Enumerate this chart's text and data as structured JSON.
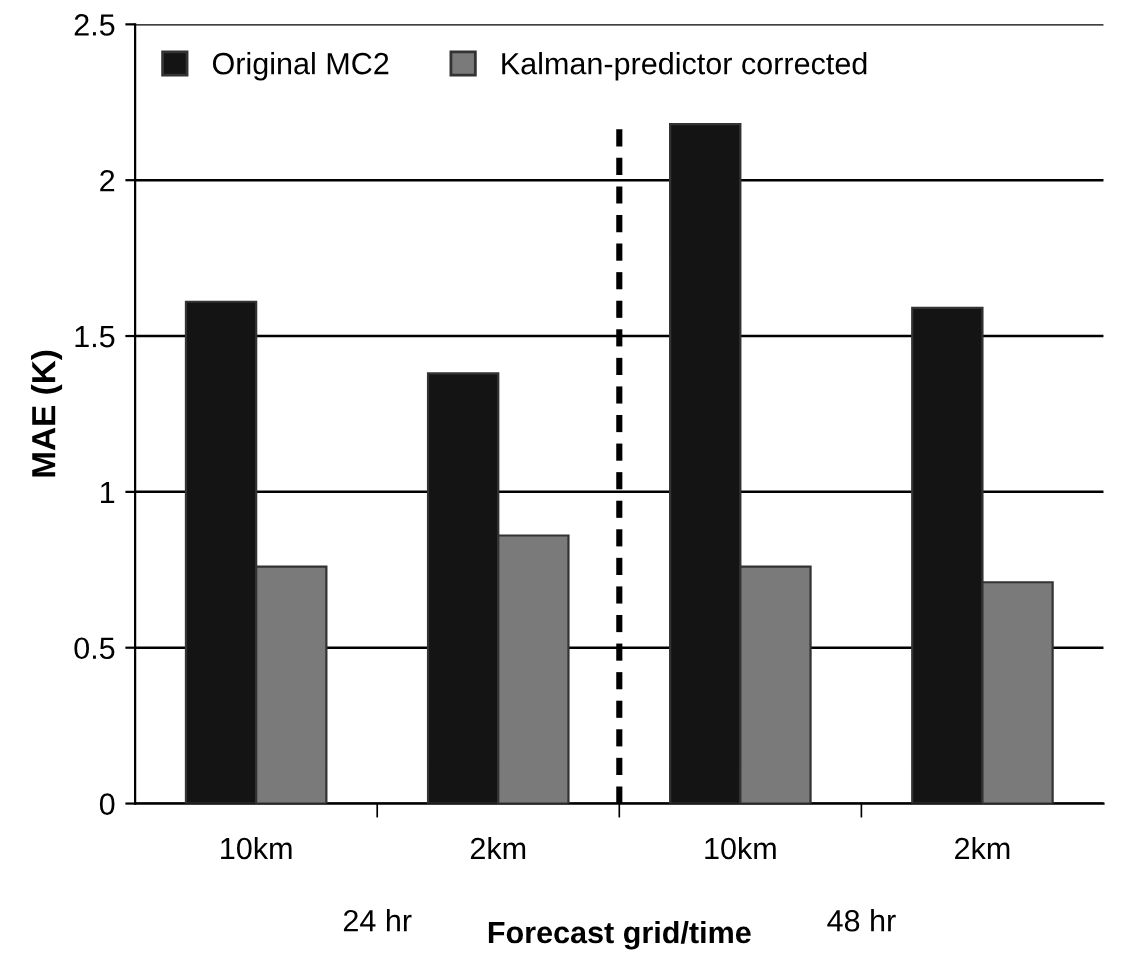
{
  "chart_data": {
    "type": "bar",
    "xlabel": "Forecast grid/time",
    "ylabel": "MAE (K)",
    "categories": [
      "10km",
      "2km",
      "10km",
      "2km"
    ],
    "series": [
      {
        "name": "Original MC2",
        "color": "#141414",
        "values": [
          1.61,
          1.38,
          2.18,
          1.59
        ]
      },
      {
        "name": "Kalman-predictor corrected",
        "color": "#7a7a7a",
        "values": [
          0.76,
          0.86,
          0.76,
          0.71
        ]
      }
    ],
    "ylim": [
      0,
      2.5
    ],
    "yticks": [
      0,
      0.5,
      1,
      1.5,
      2,
      2.5
    ],
    "grid": "y",
    "legend": "top left",
    "annotations": [
      "24 hr",
      "48 hr"
    ]
  }
}
